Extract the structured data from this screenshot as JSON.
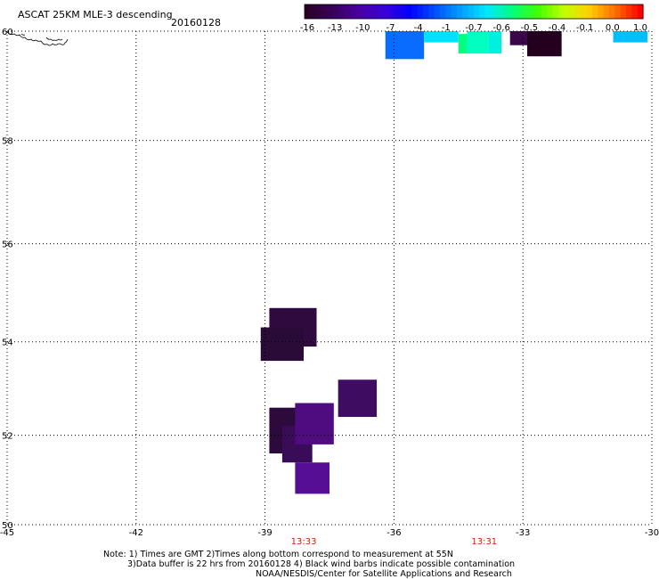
{
  "header": {
    "title": "ASCAT 25KM MLE-3 descending",
    "date": "20160128"
  },
  "colorbar": {
    "ticks": [
      "-16",
      "-13",
      "-10",
      "-7",
      "-4",
      "-1",
      "-0.7",
      "-0.6",
      "-0.5",
      "-0.4",
      "-0.1",
      "0.0",
      "1.0"
    ],
    "colors": [
      "#2a0028",
      "#3a005a",
      "#4a00a0",
      "#3a00d8",
      "#0000ff",
      "#0050ff",
      "#00a0ff",
      "#00e8ff",
      "#00ff80",
      "#40ff00",
      "#c0ff00",
      "#ffd000",
      "#ff7000",
      "#ff0000"
    ]
  },
  "map": {
    "lon_ticks": [
      "-45",
      "-42",
      "-39",
      "-36",
      "-33",
      "-30"
    ],
    "lat_ticks": [
      "50",
      "52",
      "54",
      "56",
      "58",
      "60"
    ],
    "lon_range": [
      -45,
      -30
    ],
    "lat_range": [
      50,
      60
    ],
    "pass_times": [
      {
        "lon": -38.1,
        "label": "13:33"
      },
      {
        "lon": -33.9,
        "label": "13:31"
      }
    ],
    "cells": [
      {
        "lon": [
          -38.9,
          -37.8
        ],
        "lat": [
          53.9,
          54.7
        ],
        "color": "#2e0a3e"
      },
      {
        "lon": [
          -39.1,
          -38.1
        ],
        "lat": [
          53.6,
          54.3
        ],
        "color": "#2a0a36"
      },
      {
        "lon": [
          -37.3,
          -36.4
        ],
        "lat": [
          52.4,
          53.2
        ],
        "color": "#3e0c60"
      },
      {
        "lon": [
          -38.9,
          -38.0
        ],
        "lat": [
          51.6,
          52.6
        ],
        "color": "#2c0a3c"
      },
      {
        "lon": [
          -38.6,
          -37.9
        ],
        "lat": [
          51.4,
          52.2
        ],
        "color": "#3a0c58"
      },
      {
        "lon": [
          -38.3,
          -37.4
        ],
        "lat": [
          51.8,
          52.7
        ],
        "color": "#4e0c80"
      },
      {
        "lon": [
          -38.3,
          -37.5
        ],
        "lat": [
          50.7,
          51.4
        ],
        "color": "#560e94"
      },
      {
        "lon": [
          -36.2,
          -35.3
        ],
        "lat": [
          59.5,
          60.0
        ],
        "color": "#0a6cff"
      },
      {
        "lon": [
          -35.3,
          -34.5
        ],
        "lat": [
          59.8,
          60.0
        ],
        "color": "#00e0ff"
      },
      {
        "lon": [
          -34.5,
          -34.3
        ],
        "lat": [
          59.6,
          59.95
        ],
        "color": "#00ff80"
      },
      {
        "lon": [
          -34.3,
          -33.8
        ],
        "lat": [
          59.6,
          60.0
        ],
        "color": "#00ffc0"
      },
      {
        "lon": [
          -33.8,
          -33.5
        ],
        "lat": [
          59.6,
          60.0
        ],
        "color": "#00f0e0"
      },
      {
        "lon": [
          -33.3,
          -32.7
        ],
        "lat": [
          59.75,
          60.0
        ],
        "color": "#3a0848"
      },
      {
        "lon": [
          -32.9,
          -32.1
        ],
        "lat": [
          59.55,
          60.0
        ],
        "color": "#22001e"
      },
      {
        "lon": [
          -30.9,
          -30.1
        ],
        "lat": [
          59.8,
          60.0
        ],
        "color": "#00bfff"
      }
    ]
  },
  "footer": {
    "line1": "Note: 1) Times are GMT 2)Times along bottom correspond to measurement at 55N",
    "line2": "3)Data buffer is 22 hrs from 20160128 4) Black wind barbs indicate possible contamination",
    "line3": "NOAA/NESDIS/Center for Satellite Applications and Research"
  }
}
